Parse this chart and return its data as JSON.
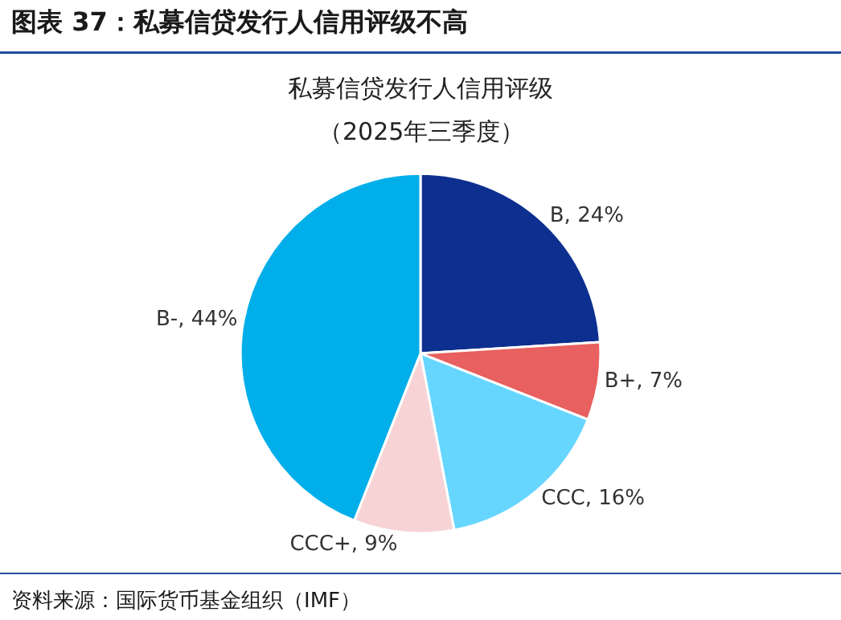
{
  "chart_data": {
    "type": "pie",
    "title": "图表 37：私募信贷发行人信用评级不高",
    "subtitle": "私募信贷发行人信用评级",
    "categories": [
      "B",
      "B+",
      "CCC",
      "CCC+",
      "B-"
    ],
    "values": [
      24,
      7,
      16,
      9,
      44
    ],
    "colors": [
      "#0d2f8f",
      "#e8605f",
      "#66d6ff",
      "#f8d3d6",
      "#00aeea"
    ],
    "value_labels": [
      "24%",
      "7%",
      "16%",
      "9%",
      "44%"
    ],
    "legend": false,
    "annotations": [
      "（2025年三季度）",
      "资料来源：国际货币基金组织（IMF）"
    ]
  }
}
